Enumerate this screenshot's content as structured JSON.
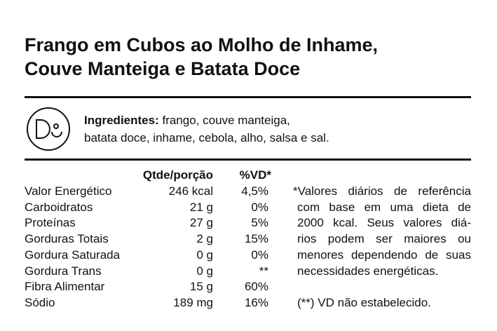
{
  "header": {
    "title_lines": [
      "Frango em Cubos ao Molho de Inhame,",
      "Couve Manteiga e Batata Doce"
    ]
  },
  "ingredients": {
    "label": "Ingredientes:",
    "lines": [
      " frango, couve manteiga,",
      "batata doce, inhame, cebola, alho, salsa e sal."
    ]
  },
  "table": {
    "header": [
      "Qtde/porção",
      "%VD*"
    ],
    "rows": [
      [
        "Valor Energético",
        "246 kcal",
        "4,5%"
      ],
      [
        "Carboidratos",
        "21 g",
        "0%"
      ],
      [
        "Proteínas",
        "27 g",
        "5%"
      ],
      [
        "Gorduras Totais",
        "2 g",
        "15%"
      ],
      [
        "Gordura Saturada",
        "0 g",
        "0%"
      ],
      [
        "Gordura Trans",
        "0 g",
        "**"
      ],
      [
        "Fibra Alimentar",
        "15 g",
        "60%"
      ],
      [
        "Sódio",
        "189 mg",
        "16%"
      ]
    ]
  },
  "footnote": {
    "lines": [
      "*Valores diários de referência",
      "com base em uma dieta de",
      "2000 kcal. Seus valores diá-",
      "rios podem ser maiores ou",
      "menores dependendo de suas",
      "necessidades energéticas."
    ],
    "note": "(**) VD não estabelecido."
  }
}
